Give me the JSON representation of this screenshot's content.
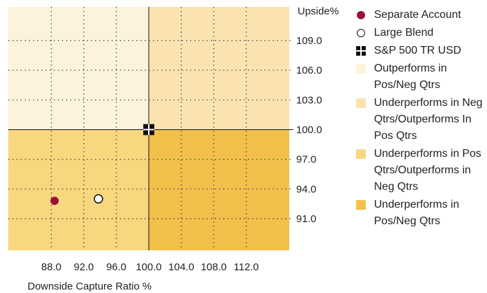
{
  "chart_data": {
    "type": "scatter",
    "xlabel": "Downside Capture Ratio %",
    "ylabel": "Upside%",
    "xlim": [
      82.7,
      117.3
    ],
    "ylim": [
      87.8,
      112.4
    ],
    "x_ticks": [
      88.0,
      92.0,
      96.0,
      100.0,
      104.0,
      108.0,
      112.0
    ],
    "y_ticks": [
      91.0,
      94.0,
      97.0,
      100.0,
      103.0,
      106.0,
      109.0
    ],
    "x_tick_labels": [
      "88.0",
      "92.0",
      "96.0",
      "100.0",
      "104.0",
      "108.0",
      "112.0"
    ],
    "y_tick_labels": [
      "91.0",
      "94.0",
      "97.0",
      "100.0",
      "103.0",
      "106.0",
      "109.0"
    ],
    "center": {
      "x": 100.0,
      "y": 100.0
    },
    "grid": true,
    "legend_position": "right",
    "quadrants": [
      {
        "name": "Outperforms in Pos/Neg Qtrs",
        "region": "top-left",
        "color": "#fdf3dc"
      },
      {
        "name": "Underperforms in Neg Qtrs/Outperforms In Pos Qtrs",
        "region": "top-right",
        "color": "#fae3b0"
      },
      {
        "name": "Underperforms in Pos Qtrs/Outperforms in Neg Qtrs",
        "region": "bottom-left",
        "color": "#f8d77f"
      },
      {
        "name": "Underperforms in Pos/Neg Qtrs",
        "region": "bottom-right",
        "color": "#f3c04c"
      }
    ],
    "series": [
      {
        "name": "Separate Account",
        "marker": "filled-circle",
        "color": "#9b0f3a",
        "x": 88.4,
        "y": 92.8
      },
      {
        "name": "Large Blend",
        "marker": "open-circle",
        "color": "#111111",
        "x": 93.8,
        "y": 93.0
      },
      {
        "name": "S&P 500 TR USD",
        "marker": "cross-square",
        "color": "#111111",
        "x": 100.0,
        "y": 100.0
      }
    ]
  }
}
